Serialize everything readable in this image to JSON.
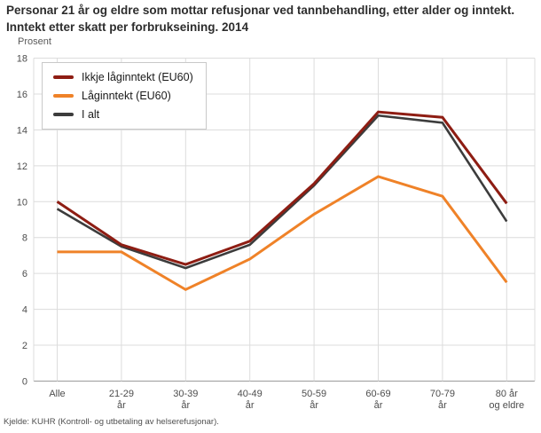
{
  "title": "Personar 21 år og eldre som mottar refusjonar ved tannbehandling, etter alder og inntekt. Inntekt etter skatt per forbrukseining. 2014",
  "y_axis_unit": "Prosent",
  "footer": "Kjelde: KUHR (Kontroll- og utbetaling av helserefusjonar).",
  "colors": {
    "series_not_low_income": "#8e1d13",
    "series_low_income": "#ef8228",
    "series_total": "#3c3c3c",
    "gridline": "#dcdcdc",
    "axis_line": "#9b9b9b",
    "tick_text": "#4d4d4d"
  },
  "chart_data": {
    "type": "line",
    "title": "Personar 21 år og eldre som mottar refusjonar ved tannbehandling, etter alder og inntekt. Inntekt etter skatt per forbrukseining. 2014",
    "xlabel": "",
    "ylabel": "Prosent",
    "ylim": [
      0,
      18
    ],
    "ytick_step": 2,
    "grid": true,
    "legend_position": "top-left",
    "categories": [
      [
        "Alle"
      ],
      [
        "21-29",
        "år"
      ],
      [
        "30-39",
        "år"
      ],
      [
        "40-49",
        "år"
      ],
      [
        "50-59",
        "år"
      ],
      [
        "60-69",
        "år"
      ],
      [
        "70-79",
        "år"
      ],
      [
        "80 år",
        "og eldre"
      ]
    ],
    "series": [
      {
        "name": "Ikkje låginntekt (EU60)",
        "color": "#8e1d13",
        "width": 3,
        "values": [
          10.0,
          7.6,
          6.5,
          7.8,
          11.0,
          15.0,
          14.7,
          9.9
        ]
      },
      {
        "name": "Låginntekt (EU60)",
        "color": "#ef8228",
        "width": 3,
        "values": [
          7.2,
          7.2,
          5.1,
          6.8,
          9.3,
          11.4,
          10.3,
          5.5
        ]
      },
      {
        "name": "I alt",
        "color": "#3c3c3c",
        "width": 2.6,
        "values": [
          9.6,
          7.5,
          6.3,
          7.6,
          10.9,
          14.8,
          14.4,
          8.9
        ]
      }
    ]
  }
}
